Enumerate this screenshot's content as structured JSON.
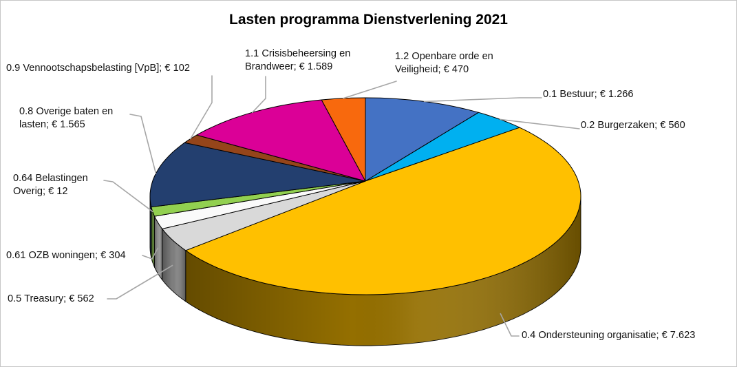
{
  "chart_data": {
    "type": "pie",
    "style": "3d",
    "title": "Lasten programma Dienstverlening 2021",
    "legend_position": "none",
    "currency": "€",
    "slices": [
      {
        "key": "bestuur",
        "label": "0.1 Bestuur",
        "value": 1266,
        "display": "0.1 Bestuur; € 1.266",
        "display_lines": [
          "0.1 Bestuur; € 1.266"
        ],
        "color": "#4472C4"
      },
      {
        "key": "burgerzaken",
        "label": "0.2 Burgerzaken",
        "value": 560,
        "display": "0.2 Burgerzaken; € 560",
        "display_lines": [
          "0.2 Burgerzaken; € 560"
        ],
        "color": "#00B0F0"
      },
      {
        "key": "ondersteuning",
        "label": "0.4 Ondersteuning organisatie",
        "value": 7623,
        "display": "0.4 Ondersteuning organisatie; € 7.623",
        "display_lines": [
          "0.4 Ondersteuning organisatie; € 7.623"
        ],
        "color": "#FFC000"
      },
      {
        "key": "treasury",
        "label": "0.5 Treasury",
        "value": 562,
        "display": "0.5 Treasury; € 562",
        "display_lines": [
          "0.5 Treasury; € 562"
        ],
        "color": "#D9D9D9"
      },
      {
        "key": "ozb",
        "label": "0.61 OZB woningen",
        "value": 304,
        "display": "0.61 OZB woningen; € 304",
        "display_lines": [
          "0.61 OZB woningen; € 304"
        ],
        "color": "#FAFAFA"
      },
      {
        "key": "belastingen",
        "label": "0.64 Belastingen Overig",
        "value": 12,
        "display": "0.64 Belastingen Overig; € 12",
        "display_lines": [
          "0.64 Belastingen",
          "Overig; € 12"
        ],
        "color": "#92D050"
      },
      {
        "key": "overige",
        "label": "0.8 Overige baten en lasten",
        "value": 1565,
        "display": "0.8 Overige baten en lasten; € 1.565",
        "display_lines": [
          "0.8 Overige baten en",
          "lasten; € 1.565"
        ],
        "color": "#233F6F"
      },
      {
        "key": "vpb",
        "label": "0.9 Vennootschapsbelasting [VpB]",
        "value": 102,
        "display": "0.9 Vennootschapsbelasting [VpB]; € 102",
        "display_lines": [
          "0.9 Vennootschapsbelasting [VpB]; € 102"
        ],
        "color": "#95451A"
      },
      {
        "key": "crisis",
        "label": "1.1 Crisisbeheersing en Brandweer",
        "value": 1589,
        "display": "1.1 Crisisbeheersing en Brandweer; € 1.589",
        "display_lines": [
          "1.1 Crisisbeheersing en",
          "Brandweer; € 1.589"
        ],
        "color": "#DB0097"
      },
      {
        "key": "openbare",
        "label": "1.2 Openbare orde en Veiligheid",
        "value": 470,
        "display": "1.2 Openbare orde en Veiligheid; € 470",
        "display_lines": [
          "1.2 Openbare orde en",
          "Veiligheid; € 470"
        ],
        "color": "#F8690D"
      }
    ],
    "leader_line_color": "#A6A6A6",
    "outline_color": "#000000"
  }
}
